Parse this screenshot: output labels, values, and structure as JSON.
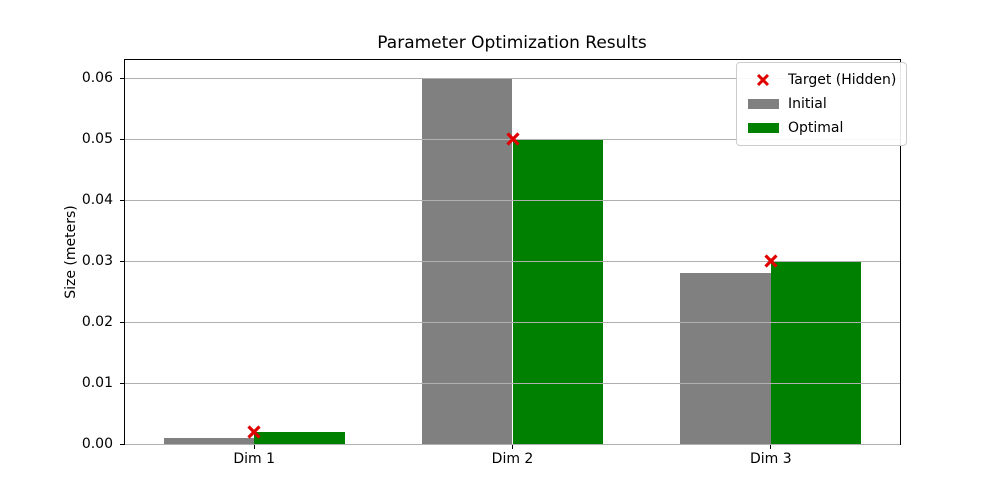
{
  "chart_data": {
    "type": "bar",
    "title": "Parameter Optimization Results",
    "xlabel": "",
    "ylabel": "Size (meters)",
    "categories": [
      "Dim 1",
      "Dim 2",
      "Dim 3"
    ],
    "series": [
      {
        "name": "Initial",
        "color": "#808080",
        "values": [
          0.001,
          0.06,
          0.028
        ]
      },
      {
        "name": "Optimal",
        "color": "#008000",
        "values": [
          0.002,
          0.05,
          0.03
        ]
      }
    ],
    "target_markers": {
      "name": "Target (Hidden)",
      "symbol": "x",
      "color": "#e00000",
      "values": [
        0.002,
        0.05,
        0.03
      ]
    },
    "bar_width_fraction": 0.35,
    "ylim": [
      0,
      0.063
    ],
    "yticks": [
      0,
      0.01,
      0.02,
      0.03,
      0.04,
      0.05,
      0.06
    ],
    "ytick_labels": [
      "0.00",
      "0.01",
      "0.02",
      "0.03",
      "0.04",
      "0.05",
      "0.06"
    ],
    "grid": "horizontal",
    "grid_color": "#b0b0b0",
    "legend": {
      "position": "upper-right",
      "items": [
        {
          "label": "Target (Hidden)",
          "swatch": "x-marker",
          "color": "#e00000"
        },
        {
          "label": "Initial",
          "swatch": "rect",
          "color": "#808080"
        },
        {
          "label": "Optimal",
          "swatch": "rect",
          "color": "#008000"
        }
      ]
    }
  }
}
